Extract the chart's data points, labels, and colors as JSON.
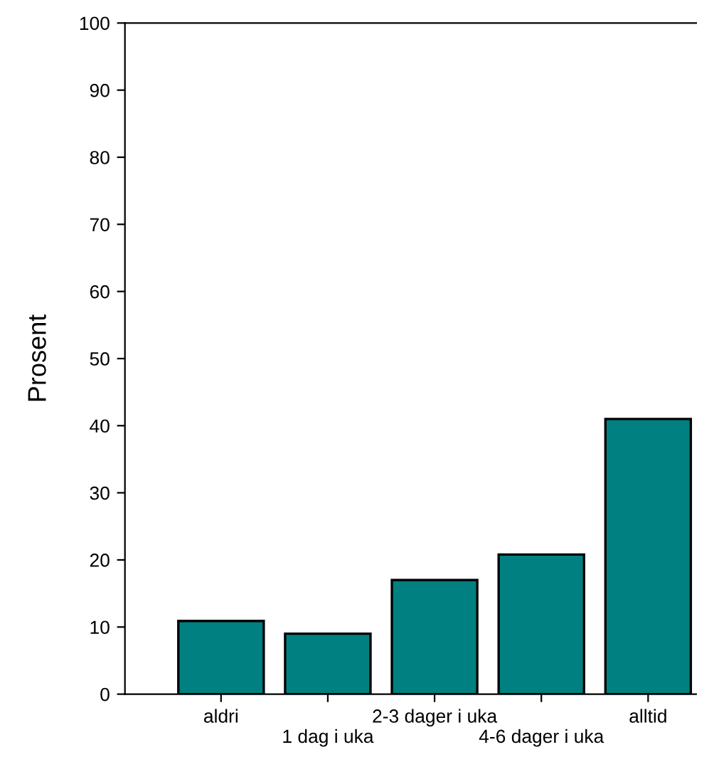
{
  "chart_data": {
    "type": "bar",
    "ylabel": "Prosent",
    "categories": [
      "aldri",
      "1 dag i uka",
      "2-3 dager i uka",
      "4-6 dager i uka",
      "alltid"
    ],
    "values": [
      10.9,
      9.0,
      17.0,
      20.8,
      41.0
    ],
    "color": "#008080",
    "ylim": [
      0,
      100
    ],
    "yticks": [
      0,
      10,
      20,
      30,
      40,
      50,
      60,
      70,
      80,
      90,
      100
    ],
    "grid": false
  }
}
